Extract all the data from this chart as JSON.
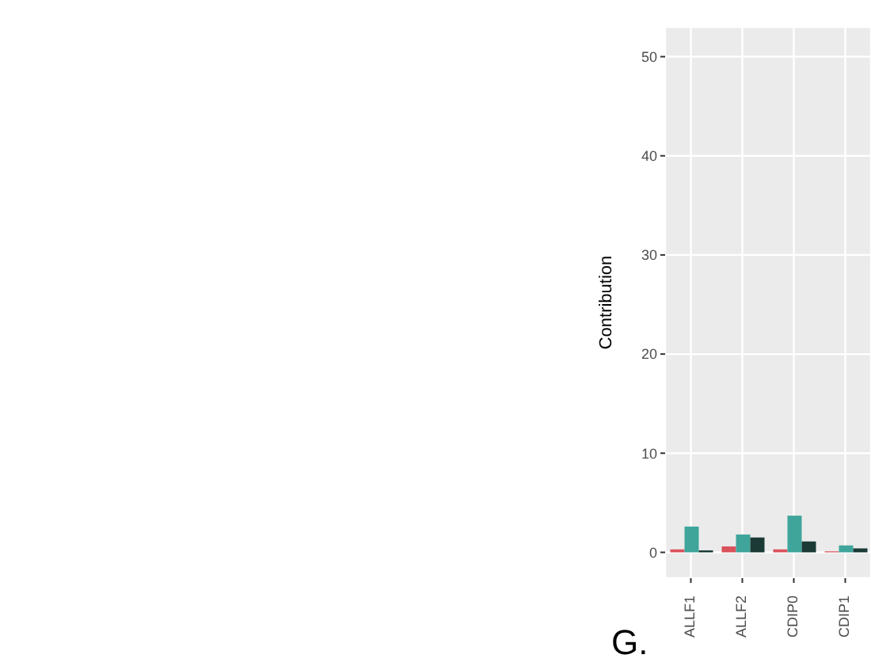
{
  "chart_data": {
    "type": "bar",
    "ylabel": "Contribution",
    "categories": [
      "ALLF1",
      "ALLF2",
      "CDIP0",
      "CDIP1"
    ],
    "series": [
      {
        "color": "#d9525c",
        "values": [
          0.3,
          0.6,
          0.3,
          0.1
        ]
      },
      {
        "color": "#3fa59b",
        "values": [
          2.6,
          1.8,
          3.7,
          0.7
        ]
      },
      {
        "color": "#1b3a36",
        "values": [
          0.2,
          1.5,
          1.1,
          0.4
        ]
      }
    ],
    "ylim": [
      -2.6,
      53
    ],
    "yticks": [
      0,
      10,
      20,
      30,
      40,
      50
    ],
    "grid": true,
    "annotations": [
      "G."
    ]
  }
}
